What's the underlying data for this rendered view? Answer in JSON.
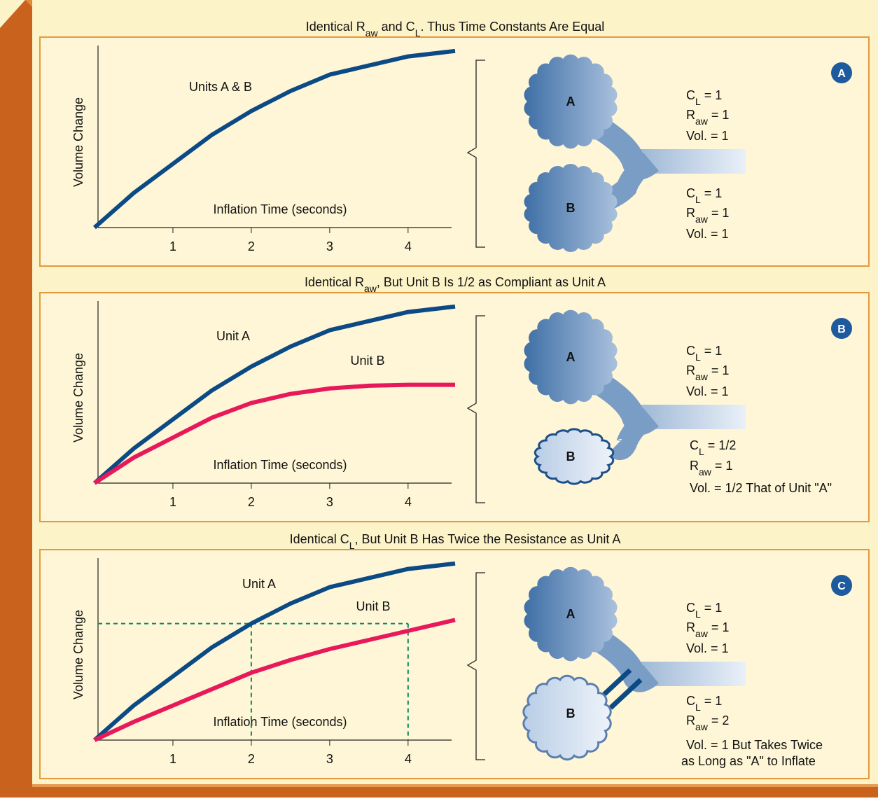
{
  "chart_data": [
    {
      "type": "line",
      "title": [
        {
          "text": "Identical R"
        },
        {
          "text": "aw",
          "sub": true
        },
        {
          "text": " and C"
        },
        {
          "text": "L",
          "sub": true
        },
        {
          "text": ". Thus Time Constants Are Equal"
        }
      ],
      "panel_label": "A",
      "x_label": "Inflation Time (seconds)",
      "y_label": "Volume Change",
      "x": [
        0,
        0.5,
        1,
        1.5,
        2,
        2.5,
        3,
        3.5,
        4,
        4.6
      ],
      "xlim": [
        0,
        4.6
      ],
      "xticks": [
        1,
        2,
        3,
        4
      ],
      "ylim": [
        0,
        1
      ],
      "series": [
        {
          "name": "Units A & B",
          "color": "#0b4a84",
          "values": [
            0,
            0.19,
            0.35,
            0.51,
            0.64,
            0.75,
            0.84,
            0.89,
            0.94,
            0.97
          ]
        }
      ]
    },
    {
      "type": "line",
      "title": [
        {
          "text": "Identical R"
        },
        {
          "text": "aw",
          "sub": true
        },
        {
          "text": ", But Unit B Is 1/2 as Compliant as Unit A"
        }
      ],
      "panel_label": "B",
      "x_label": "Inflation Time (seconds)",
      "y_label": "Volume Change",
      "x": [
        0,
        0.5,
        1,
        1.5,
        2,
        2.5,
        3,
        3.5,
        4,
        4.6
      ],
      "xlim": [
        0,
        4.6
      ],
      "xticks": [
        1,
        2,
        3,
        4
      ],
      "ylim": [
        0,
        1
      ],
      "series": [
        {
          "name": "Unit A",
          "color": "#0b4a84",
          "values": [
            0,
            0.19,
            0.35,
            0.51,
            0.64,
            0.75,
            0.84,
            0.89,
            0.94,
            0.97
          ]
        },
        {
          "name": "Unit B",
          "color": "#e8195a",
          "values": [
            0,
            0.14,
            0.25,
            0.36,
            0.44,
            0.49,
            0.52,
            0.535,
            0.54,
            0.54
          ]
        }
      ]
    },
    {
      "type": "line",
      "title": [
        {
          "text": "Identical C"
        },
        {
          "text": "L",
          "sub": true
        },
        {
          "text": ", But Unit B Has Twice the Resistance as Unit A"
        }
      ],
      "panel_label": "C",
      "x_label": "Inflation Time (seconds)",
      "y_label": "Volume Change",
      "x": [
        0,
        0.5,
        1,
        1.5,
        2,
        2.5,
        3,
        3.5,
        4,
        4.6
      ],
      "xlim": [
        0,
        4.6
      ],
      "xticks": [
        1,
        2,
        3,
        4
      ],
      "ylim": [
        0,
        1
      ],
      "series": [
        {
          "name": "Unit A",
          "color": "#0b4a84",
          "values": [
            0,
            0.19,
            0.35,
            0.51,
            0.64,
            0.75,
            0.84,
            0.89,
            0.94,
            0.97
          ]
        },
        {
          "name": "Unit  B",
          "color": "#e8195a",
          "values": [
            0,
            0.1,
            0.19,
            0.28,
            0.37,
            0.44,
            0.5,
            0.55,
            0.6,
            0.66
          ]
        }
      ],
      "guides": {
        "level": 0.64,
        "x": [
          2,
          4
        ],
        "color": "#0a8a6a"
      }
    }
  ],
  "diagrams": [
    {
      "units": [
        {
          "label": "A",
          "params": [
            [
              {
                "text": "C"
              },
              {
                "text": "L",
                "sub": true
              },
              {
                "text": " =  1"
              }
            ],
            [
              {
                "text": "R"
              },
              {
                "text": "aw",
                "sub": true
              },
              {
                "text": " =  1"
              }
            ],
            [
              {
                "text": "Vol. =  1"
              }
            ]
          ]
        },
        {
          "label": "B",
          "params": [
            [
              {
                "text": "C"
              },
              {
                "text": "L",
                "sub": true
              },
              {
                "text": " =  1"
              }
            ],
            [
              {
                "text": "R"
              },
              {
                "text": "aw",
                "sub": true
              },
              {
                "text": " =  1"
              }
            ],
            [
              {
                "text": "Vol. =  1"
              }
            ]
          ]
        }
      ]
    },
    {
      "units": [
        {
          "label": "A",
          "params": [
            [
              {
                "text": "C"
              },
              {
                "text": "L",
                "sub": true
              },
              {
                "text": " =  1"
              }
            ],
            [
              {
                "text": "R"
              },
              {
                "text": "aw",
                "sub": true
              },
              {
                "text": " =  1"
              }
            ],
            [
              {
                "text": "Vol. =  1"
              }
            ]
          ]
        },
        {
          "label": "B",
          "params": [
            [
              {
                "text": "C"
              },
              {
                "text": "L",
                "sub": true
              },
              {
                "text": " =  1/2"
              }
            ],
            [
              {
                "text": "R"
              },
              {
                "text": "aw",
                "sub": true
              },
              {
                "text": " =  1"
              }
            ],
            [
              {
                "text": "Vol. =  1/2 That of Unit \"A\""
              }
            ]
          ]
        }
      ]
    },
    {
      "units": [
        {
          "label": "A",
          "params": [
            [
              {
                "text": "C"
              },
              {
                "text": "L",
                "sub": true
              },
              {
                "text": " =  1"
              }
            ],
            [
              {
                "text": "R"
              },
              {
                "text": "aw",
                "sub": true
              },
              {
                "text": " =  1"
              }
            ],
            [
              {
                "text": "Vol. =  1"
              }
            ]
          ]
        },
        {
          "label": "B",
          "params": [
            [
              {
                "text": "C"
              },
              {
                "text": "L",
                "sub": true
              },
              {
                "text": " =  1"
              }
            ],
            [
              {
                "text": "R"
              },
              {
                "text": "aw",
                "sub": true
              },
              {
                "text": " =  2"
              }
            ],
            [
              {
                "text": "Vol. =  1 But Takes Twice"
              }
            ],
            [
              {
                "text": "as Long as \"A\" to Inflate"
              }
            ]
          ]
        }
      ]
    }
  ]
}
